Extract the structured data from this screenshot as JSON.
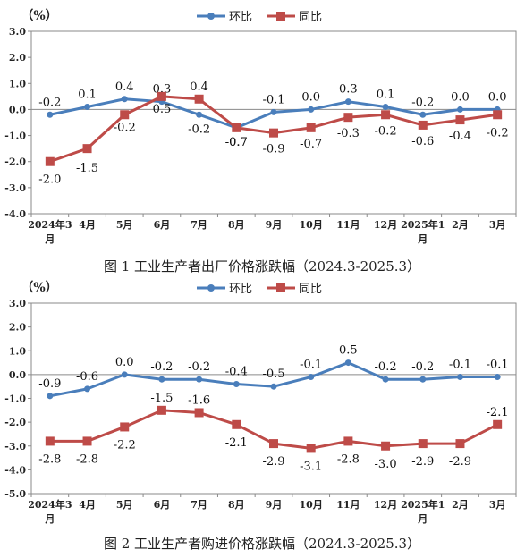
{
  "chart_data": [
    {
      "type": "line",
      "unit_label": "（%）",
      "caption": "图 1  工业生产者出厂价格涨跌幅（2024.3-2025.3）",
      "categories": [
        "2024年3月",
        "4月",
        "5月",
        "6月",
        "7月",
        "8月",
        "9月",
        "10月",
        "11月",
        "12月",
        "2025年1月",
        "2月",
        "3月"
      ],
      "category_lines": [
        [
          "2024年3",
          "月"
        ],
        [
          "4月"
        ],
        [
          "5月"
        ],
        [
          "6月"
        ],
        [
          "7月"
        ],
        [
          "8月"
        ],
        [
          "9月"
        ],
        [
          "10月"
        ],
        [
          "11月"
        ],
        [
          "12月"
        ],
        [
          "2025年1",
          "月"
        ],
        [
          "2月"
        ],
        [
          "3月"
        ]
      ],
      "ylim": [
        -4.0,
        3.0
      ],
      "yticks": [
        "3.0",
        "2.0",
        "1.0",
        "0.0",
        "-1.0",
        "-2.0",
        "-3.0",
        "-4.0"
      ],
      "series": [
        {
          "name": "环比",
          "color": "#4a7ebb",
          "marker": "circle",
          "values": [
            -0.2,
            0.1,
            0.4,
            0.3,
            -0.2,
            -0.7,
            -0.1,
            0.0,
            0.3,
            0.1,
            -0.2,
            0.0,
            0.0
          ],
          "labels": [
            "-0.2",
            "0.1",
            "0.4",
            "0.3",
            "-0.2",
            "-0.7",
            "-0.1",
            "0.0",
            "0.3",
            "0.1",
            "-0.2",
            "0.0",
            "0.0"
          ]
        },
        {
          "name": "同比",
          "color": "#be4b48",
          "marker": "square",
          "values": [
            -2.0,
            -1.5,
            -0.2,
            0.5,
            0.4,
            -0.7,
            -0.9,
            -0.7,
            -0.3,
            -0.2,
            -0.6,
            -0.4,
            -0.2
          ],
          "labels": [
            "-2.0",
            "-1.5",
            "-0.2",
            "0.5",
            "0.4",
            "-0.7",
            "-0.9",
            "-0.7",
            "-0.3",
            "-0.2",
            "-0.6",
            "-0.4",
            "-0.2"
          ]
        }
      ]
    },
    {
      "type": "line",
      "unit_label": "（%）",
      "caption": "图 2   工业生产者购进价格涨跌幅（2024.3-2025.3）",
      "categories": [
        "2024年3月",
        "4月",
        "5月",
        "6月",
        "7月",
        "8月",
        "9月",
        "10月",
        "11月",
        "12月",
        "2025年1月",
        "2月",
        "3月"
      ],
      "category_lines": [
        [
          "2024年3",
          "月"
        ],
        [
          "4月"
        ],
        [
          "5月"
        ],
        [
          "6月"
        ],
        [
          "7月"
        ],
        [
          "8月"
        ],
        [
          "9月"
        ],
        [
          "10月"
        ],
        [
          "11月"
        ],
        [
          "12月"
        ],
        [
          "2025年1",
          "月"
        ],
        [
          "2月"
        ],
        [
          "3月"
        ]
      ],
      "ylim": [
        -5.0,
        3.0
      ],
      "yticks": [
        "3.0",
        "2.0",
        "1.0",
        "0.0",
        "-1.0",
        "-2.0",
        "-3.0",
        "-4.0",
        "-5.0"
      ],
      "series": [
        {
          "name": "环比",
          "color": "#4a7ebb",
          "marker": "circle",
          "values": [
            -0.9,
            -0.6,
            0.0,
            -0.2,
            -0.2,
            -0.4,
            -0.5,
            -0.1,
            0.5,
            -0.2,
            -0.2,
            -0.1,
            -0.1
          ],
          "labels": [
            "-0.9",
            "-0.6",
            "0.0",
            "-0.2",
            "-0.2",
            "-0.4",
            "-0.5",
            "-0.1",
            "0.5",
            "-0.2",
            "-0.2",
            "-0.1",
            "-0.1"
          ]
        },
        {
          "name": "同比",
          "color": "#be4b48",
          "marker": "square",
          "values": [
            -2.8,
            -2.8,
            -2.2,
            -1.5,
            -1.6,
            -2.1,
            -2.9,
            -3.1,
            -2.8,
            -3.0,
            -2.9,
            -2.9,
            -2.1
          ],
          "labels": [
            "-2.8",
            "-2.8",
            "-2.2",
            "-1.5",
            "-1.6",
            "-2.1",
            "-2.9",
            "-3.1",
            "-2.8",
            "-3.0",
            "-2.9",
            "-2.9",
            "-2.1"
          ]
        }
      ]
    }
  ]
}
